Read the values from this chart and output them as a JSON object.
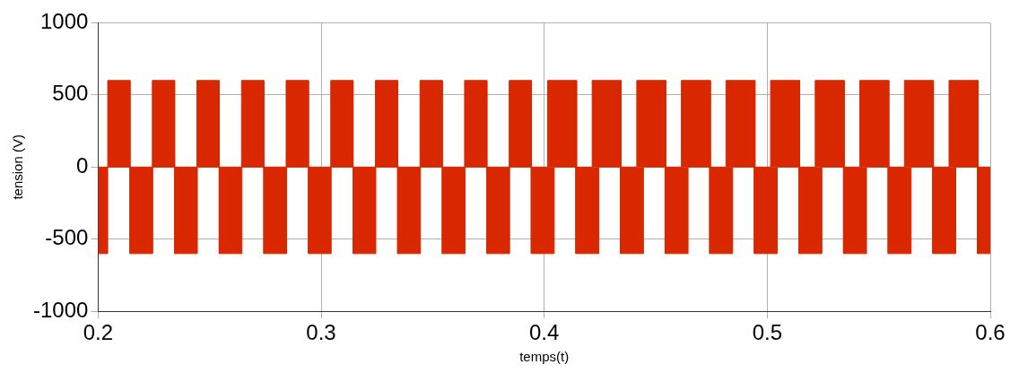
{
  "chart_data": {
    "type": "area",
    "xlabel": "temps(t)",
    "ylabel": "tension (V)",
    "xlim": [
      0.2,
      0.6
    ],
    "xticks": [
      0.2,
      0.3,
      0.4,
      0.5,
      0.6
    ],
    "ylim": [
      -1000,
      1000
    ],
    "yticks": [
      -1000,
      -500,
      0,
      500,
      1000
    ],
    "grid": true,
    "legend": false,
    "series": [
      {
        "color": "#d92800",
        "x": [
          0.2,
          0.2043,
          0.2043,
          0.2143,
          0.2143,
          0.2243,
          0.2243,
          0.2343,
          0.2343,
          0.2443,
          0.2443,
          0.2543,
          0.2543,
          0.2643,
          0.2643,
          0.2743,
          0.2743,
          0.2843,
          0.2843,
          0.2943,
          0.2943,
          0.3043,
          0.3043,
          0.3143,
          0.3143,
          0.3243,
          0.3243,
          0.3343,
          0.3343,
          0.3443,
          0.3443,
          0.3543,
          0.3543,
          0.3643,
          0.3643,
          0.3743,
          0.3743,
          0.3843,
          0.3843,
          0.3943,
          0.3943,
          0.4015,
          0.4015,
          0.4145,
          0.4145,
          0.4215,
          0.4215,
          0.4345,
          0.4345,
          0.4415,
          0.4415,
          0.4545,
          0.4545,
          0.4615,
          0.4615,
          0.4745,
          0.4745,
          0.4815,
          0.4815,
          0.4945,
          0.4945,
          0.5015,
          0.5015,
          0.5145,
          0.5145,
          0.5215,
          0.5215,
          0.5345,
          0.5345,
          0.5415,
          0.5415,
          0.5545,
          0.5545,
          0.5615,
          0.5615,
          0.5745,
          0.5745,
          0.5815,
          0.5815,
          0.5945,
          0.5945,
          0.6
        ],
        "values": [
          0,
          0,
          600,
          600,
          0,
          0,
          600,
          600,
          0,
          0,
          600,
          600,
          0,
          0,
          600,
          600,
          0,
          0,
          600,
          600,
          0,
          0,
          600,
          600,
          0,
          0,
          600,
          600,
          0,
          0,
          600,
          600,
          0,
          0,
          600,
          600,
          0,
          0,
          600,
          600,
          0,
          0,
          600,
          600,
          0,
          0,
          600,
          600,
          0,
          0,
          600,
          600,
          0,
          0,
          600,
          600,
          0,
          0,
          600,
          600,
          0,
          0,
          600,
          600,
          0,
          0,
          600,
          600,
          0,
          0,
          600,
          600,
          0,
          0,
          600,
          600,
          0,
          0,
          600,
          600,
          0,
          0
        ]
      },
      {
        "color": "#d92800",
        "x": [
          0.2,
          0.2043,
          0.2043,
          0.2143,
          0.2143,
          0.2245,
          0.2245,
          0.2343,
          0.2343,
          0.2445,
          0.2445,
          0.2543,
          0.2543,
          0.2645,
          0.2645,
          0.2743,
          0.2743,
          0.2845,
          0.2845,
          0.2943,
          0.2943,
          0.3045,
          0.3045,
          0.3143,
          0.3143,
          0.3245,
          0.3245,
          0.3343,
          0.3343,
          0.3445,
          0.3445,
          0.3543,
          0.3543,
          0.3645,
          0.3645,
          0.3743,
          0.3743,
          0.3845,
          0.3845,
          0.3942,
          0.3942,
          0.4045,
          0.4045,
          0.4142,
          0.4142,
          0.4245,
          0.4245,
          0.4342,
          0.4342,
          0.4445,
          0.4445,
          0.4542,
          0.4542,
          0.4645,
          0.4645,
          0.4742,
          0.4742,
          0.4845,
          0.4845,
          0.4942,
          0.4942,
          0.5045,
          0.5045,
          0.5142,
          0.5142,
          0.5245,
          0.5245,
          0.5342,
          0.5342,
          0.5445,
          0.5445,
          0.5542,
          0.5542,
          0.5645,
          0.5645,
          0.5742,
          0.5742,
          0.5845,
          0.5845,
          0.5942,
          0.5942,
          0.6
        ],
        "values": [
          -600,
          -600,
          0,
          0,
          -600,
          -600,
          0,
          0,
          -600,
          -600,
          0,
          0,
          -600,
          -600,
          0,
          0,
          -600,
          -600,
          0,
          0,
          -600,
          -600,
          0,
          0,
          -600,
          -600,
          0,
          0,
          -600,
          -600,
          0,
          0,
          -600,
          -600,
          0,
          0,
          -600,
          -600,
          0,
          0,
          -600,
          -600,
          0,
          0,
          -600,
          -600,
          0,
          0,
          -600,
          -600,
          0,
          0,
          -600,
          -600,
          0,
          0,
          -600,
          -600,
          0,
          0,
          -600,
          -600,
          0,
          0,
          -600,
          -600,
          0,
          0,
          -600,
          -600,
          0,
          0,
          -600,
          -600,
          0,
          0,
          -600,
          -600,
          0,
          0,
          -600,
          -600
        ]
      }
    ]
  }
}
